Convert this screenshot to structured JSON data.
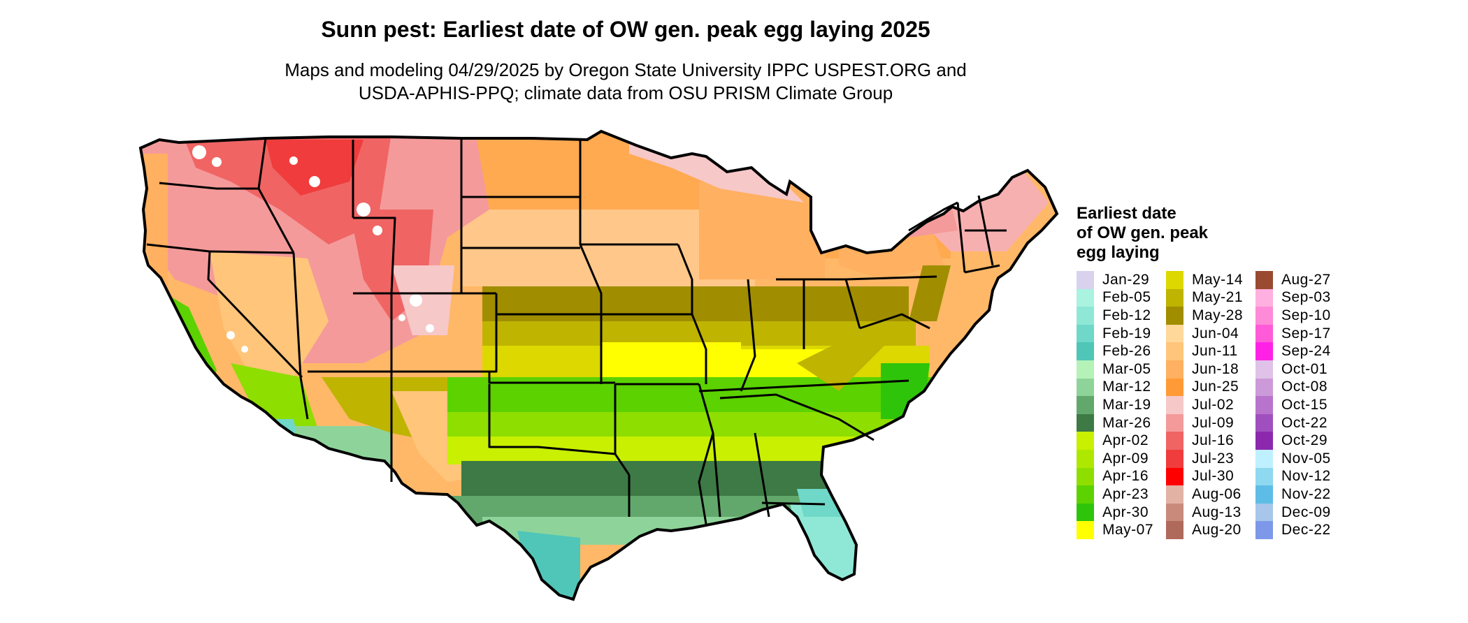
{
  "title": "Sunn pest: Earliest date of OW gen. peak egg laying 2025",
  "subtitle_lines": [
    "Maps and modeling 04/29/2025 by Oregon State University IPPC USPEST.ORG and",
    "USDA-APHIS-PPQ; climate data from OSU PRISM Climate Group"
  ],
  "legend": {
    "title_lines": [
      "Earliest date",
      "of OW gen. peak",
      "egg laying"
    ],
    "items": [
      {
        "label": "Jan-29",
        "color": "#d9d2ee"
      },
      {
        "label": "Feb-05",
        "color": "#a9f3e0"
      },
      {
        "label": "Feb-12",
        "color": "#8fe8d6"
      },
      {
        "label": "Feb-19",
        "color": "#6fd8c8"
      },
      {
        "label": "Feb-26",
        "color": "#4fc6b8"
      },
      {
        "label": "Mar-05",
        "color": "#b5f2b8"
      },
      {
        "label": "Mar-12",
        "color": "#8ed49a"
      },
      {
        "label": "Mar-19",
        "color": "#62a86c"
      },
      {
        "label": "Mar-26",
        "color": "#3d7a45"
      },
      {
        "label": "Apr-02",
        "color": "#c8f000"
      },
      {
        "label": "Apr-09",
        "color": "#aee800"
      },
      {
        "label": "Apr-16",
        "color": "#8ede00"
      },
      {
        "label": "Apr-23",
        "color": "#5cd200"
      },
      {
        "label": "Apr-30",
        "color": "#2ec40a"
      },
      {
        "label": "May-07",
        "color": "#ffff00"
      },
      {
        "label": "May-14",
        "color": "#dcd800"
      },
      {
        "label": "May-21",
        "color": "#bfb400"
      },
      {
        "label": "May-28",
        "color": "#a08e00"
      },
      {
        "label": "Jun-04",
        "color": "#ffd89a"
      },
      {
        "label": "Jun-11",
        "color": "#ffc57a"
      },
      {
        "label": "Jun-18",
        "color": "#ffb060"
      },
      {
        "label": "Jun-25",
        "color": "#ff9a36"
      },
      {
        "label": "Jul-02",
        "color": "#f7c8c8"
      },
      {
        "label": "Jul-09",
        "color": "#f49a9a"
      },
      {
        "label": "Jul-16",
        "color": "#f06464"
      },
      {
        "label": "Jul-23",
        "color": "#f03c3c"
      },
      {
        "label": "Jul-30",
        "color": "#ff0000"
      },
      {
        "label": "Aug-06",
        "color": "#e2b2a4"
      },
      {
        "label": "Aug-13",
        "color": "#c98a7c"
      },
      {
        "label": "Aug-20",
        "color": "#b06a5c"
      },
      {
        "label": "Aug-27",
        "color": "#9a4a30"
      },
      {
        "label": "Sep-03",
        "color": "#ffb0e0"
      },
      {
        "label": "Sep-10",
        "color": "#ff8ad8"
      },
      {
        "label": "Sep-17",
        "color": "#ff5ad8"
      },
      {
        "label": "Sep-24",
        "color": "#ff22e6"
      },
      {
        "label": "Oct-01",
        "color": "#e0c2e8"
      },
      {
        "label": "Oct-08",
        "color": "#cc9ad8"
      },
      {
        "label": "Oct-15",
        "color": "#b874cc"
      },
      {
        "label": "Oct-22",
        "color": "#a050be"
      },
      {
        "label": "Oct-29",
        "color": "#8c28ae"
      },
      {
        "label": "Nov-05",
        "color": "#bff0ff"
      },
      {
        "label": "Nov-12",
        "color": "#8ed8f0"
      },
      {
        "label": "Nov-22",
        "color": "#5ebde6"
      },
      {
        "label": "Dec-09",
        "color": "#a8c6ea"
      },
      {
        "label": "Dec-22",
        "color": "#7d98e8"
      }
    ]
  }
}
